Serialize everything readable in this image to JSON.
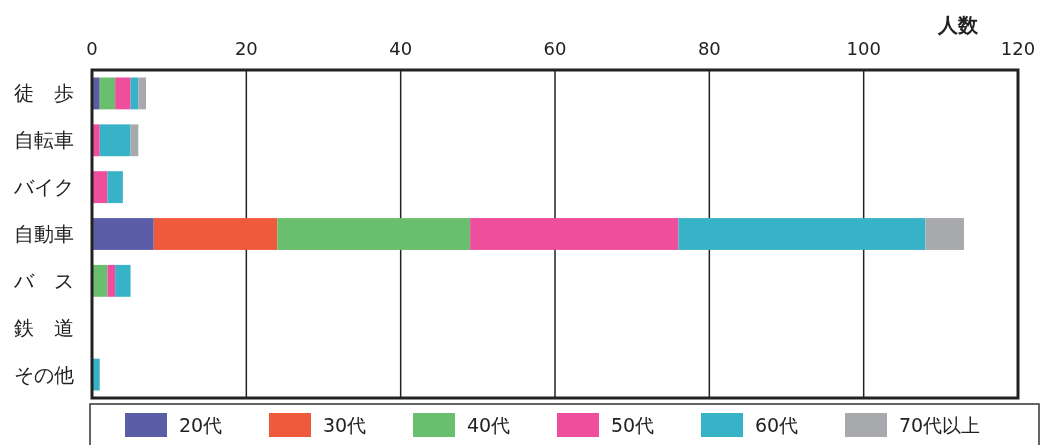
{
  "chart_data": {
    "type": "bar",
    "orientation": "horizontal",
    "stacked": true,
    "xlabel": "人数",
    "categories": [
      "徒　歩",
      "自転車",
      "バイク",
      "自動車",
      "バ　ス",
      "鉄　道",
      "その他"
    ],
    "series": [
      {
        "name": "20代",
        "color": "#5b5ea6",
        "values": [
          1,
          0,
          0,
          8,
          0,
          0,
          0
        ]
      },
      {
        "name": "30代",
        "color": "#ef5a3c",
        "values": [
          0,
          0,
          0,
          16,
          0,
          0,
          0
        ]
      },
      {
        "name": "40代",
        "color": "#6abf6e",
        "values": [
          2,
          0,
          0,
          25,
          2,
          0,
          0
        ]
      },
      {
        "name": "50代",
        "color": "#ee4e9b",
        "values": [
          2,
          1,
          2,
          27,
          1,
          0,
          0
        ]
      },
      {
        "name": "60代",
        "color": "#38b2c6",
        "values": [
          1,
          4,
          2,
          32,
          2,
          0,
          1
        ]
      },
      {
        "name": "70代以上",
        "color": "#a7a9ac",
        "values": [
          1,
          1,
          0,
          5,
          0,
          0,
          0
        ]
      }
    ],
    "xlim": [
      0,
      120
    ],
    "xticks": [
      0,
      20,
      40,
      60,
      80,
      100,
      120
    ],
    "grid": "x",
    "legend": "bottom"
  }
}
